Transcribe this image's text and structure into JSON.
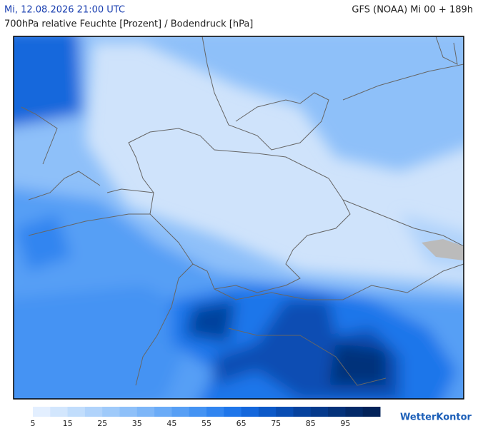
{
  "header": {
    "datetime": "Mi, 12.08.2026 21:00 UTC",
    "model": "GFS (NOAA) Mi 00 + 189h",
    "subtitle": "700hPa relative Feuchte [Prozent] / Bodendruck [hPa]"
  },
  "legend": {
    "lim": [
      5,
      105
    ],
    "ticks": [
      5,
      15,
      25,
      35,
      45,
      55,
      65,
      75,
      85,
      95
    ],
    "colors": [
      "#e3efff",
      "#d2e6fd",
      "#c1ddfc",
      "#b0d3fb",
      "#9fcafa",
      "#8ec0f9",
      "#7db6f8",
      "#6aabf7",
      "#579ff5",
      "#4493f3",
      "#3185f0",
      "#1f76ea",
      "#1467dc",
      "#0c59c8",
      "#084db3",
      "#06429e",
      "#053a8c",
      "#04327a",
      "#032a69",
      "#022259"
    ]
  },
  "logo": "WetterKontor"
}
